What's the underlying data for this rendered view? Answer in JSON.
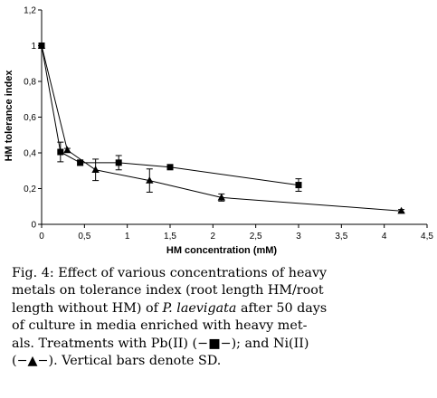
{
  "chart_data": {
    "type": "line",
    "xlabel": "HM concentration (mM)",
    "ylabel": "HM tolerance index",
    "xlim": [
      0,
      4.5
    ],
    "ylim": [
      0,
      1.2
    ],
    "x_ticks": [
      "0",
      "0,5",
      "1",
      "1,5",
      "2",
      "2,5",
      "3",
      "3,5",
      "4",
      "4,5"
    ],
    "y_ticks": [
      "0",
      "0,2",
      "0,4",
      "0,6",
      "0,8",
      "1",
      "1,2"
    ],
    "grid": false,
    "series": [
      {
        "marker": "square",
        "color": "#000000",
        "x": [
          0,
          0.22,
          0.45,
          0.9,
          1.5,
          3.0
        ],
        "y": [
          1.0,
          0.405,
          0.345,
          0.345,
          0.32,
          0.22
        ],
        "error": [
          0,
          0.055,
          0.015,
          0.04,
          0.01,
          0.035
        ]
      },
      {
        "marker": "triangle",
        "color": "#000000",
        "x": [
          0,
          0.3,
          0.63,
          1.26,
          2.1,
          4.2
        ],
        "y": [
          1.0,
          0.415,
          0.305,
          0.245,
          0.15,
          0.075
        ],
        "error": [
          0,
          0.01,
          0.06,
          0.065,
          0.02,
          0.008
        ]
      }
    ]
  },
  "caption": {
    "lines": [
      [
        {
          "t": "Fig. 4: Effect of various concentrations of heavy"
        }
      ],
      [
        {
          "t": "metals on tolerance index (root length HM/root"
        }
      ],
      [
        {
          "t": "length without HM) of "
        },
        {
          "t": "P. laevigata",
          "i": true
        },
        {
          "t": " after 50 days"
        }
      ],
      [
        {
          "t": "of culture in media enriched with heavy met-"
        }
      ],
      [
        {
          "t": "als. Treatments with Pb(II) (−■−); and Ni(II)"
        }
      ],
      [
        {
          "t": "(−▲−). Vertical bars denote SD."
        }
      ]
    ]
  }
}
